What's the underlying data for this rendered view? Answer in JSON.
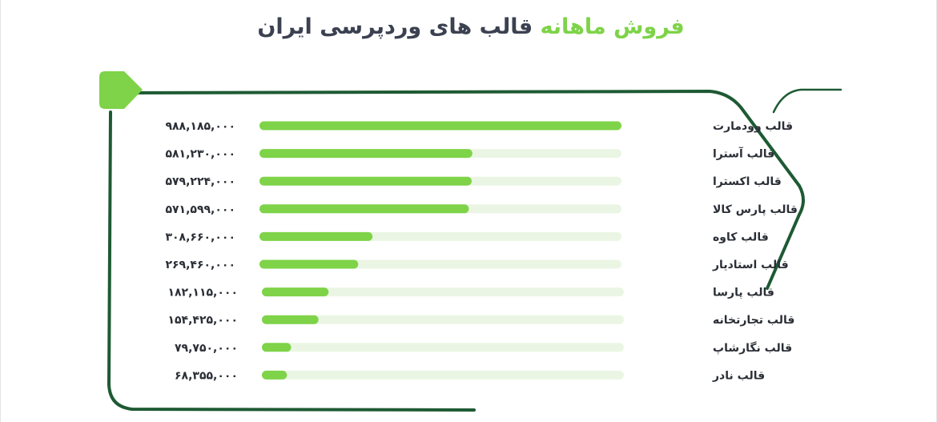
{
  "title": {
    "accent": "فروش ماهانه",
    "main": "قالب های وردپرسی ایران"
  },
  "colors": {
    "bar": "#7ed348",
    "track": "#eaf6e3",
    "frame": "#1e5a34",
    "title_main": "#3b4150"
  },
  "chart_data": {
    "type": "bar",
    "orientation": "horizontal",
    "title": "فروش ماهانه قالب های وردپرسی ایران",
    "categories": [
      "قالب وودمارت",
      "قالب آسترا",
      "قالب اکسترا",
      "قالب پارس کالا",
      "قالب کاوه",
      "قالب استادیار",
      "قالب پارسا",
      "قالب تجارتخانه",
      "قالب نگارشاپ",
      "قالب نادر"
    ],
    "values": [
      988185000,
      581230000,
      579224000,
      571599000,
      308660000,
      269460000,
      182115000,
      154425000,
      79750000,
      68355000
    ],
    "value_labels": [
      "۹۸۸,۱۸۵,۰۰۰",
      "۵۸۱,۲۳۰,۰۰۰",
      "۵۷۹,۲۲۴,۰۰۰",
      "۵۷۱,۵۹۹,۰۰۰",
      "۳۰۸,۶۶۰,۰۰۰",
      "۲۶۹,۴۶۰,۰۰۰",
      "۱۸۲,۱۱۵,۰۰۰",
      "۱۵۴,۴۲۵,۰۰۰",
      "۷۹,۷۵۰,۰۰۰",
      "۶۸,۳۵۵,۰۰۰"
    ],
    "xlim": [
      0,
      988185000
    ],
    "grid": false,
    "legend": "none"
  }
}
